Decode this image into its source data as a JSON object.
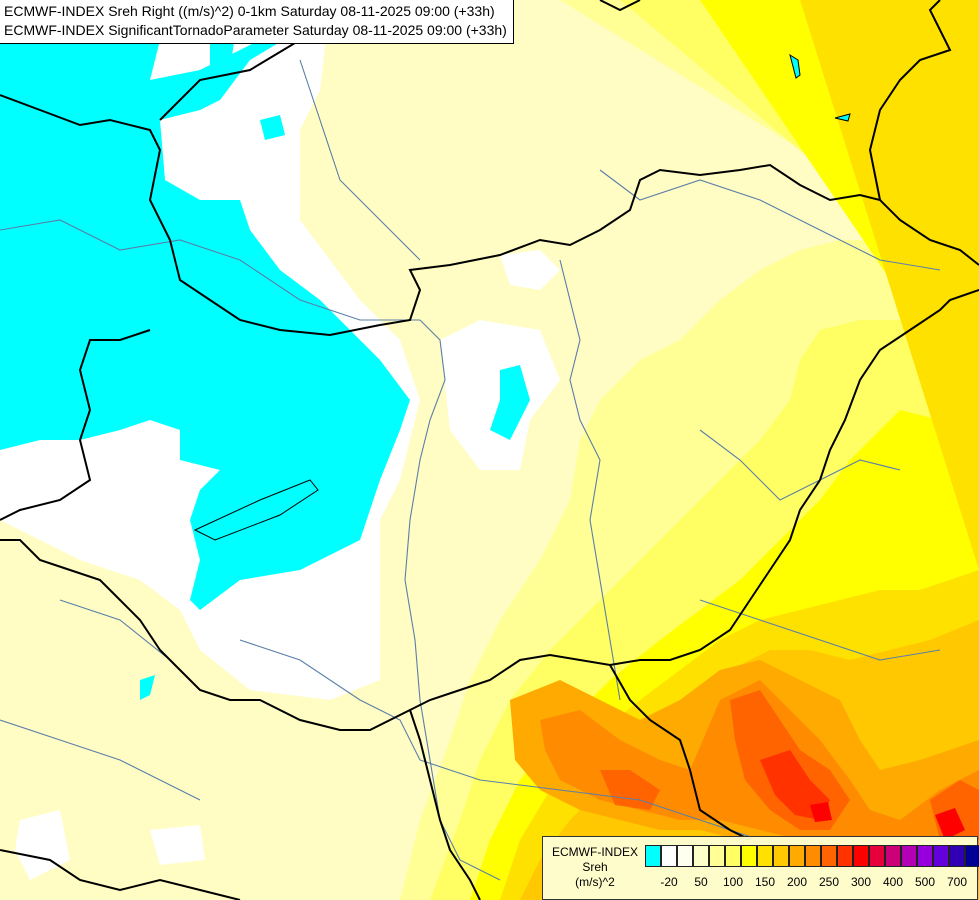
{
  "header": {
    "line1": "ECMWF-INDEX Sreh Right ((m/s)^2) 0-1km Saturday 08-11-2025 09:00 (+33h)",
    "line2": "ECMWF-INDEX SignificantTornadoParameter Saturday 08-11-2025 09:00 (+33h)"
  },
  "legend": {
    "title_line1": "ECMWF-INDEX",
    "title_line2": "Sreh",
    "title_line3": "(m/s)^2",
    "colors": [
      "#00ffff",
      "#ffffff",
      "#fffff0",
      "#ffffc8",
      "#ffff96",
      "#ffff64",
      "#ffff00",
      "#ffe100",
      "#ffc800",
      "#ffaa00",
      "#ff8c00",
      "#ff6400",
      "#ff3200",
      "#ff0000",
      "#e6003c",
      "#cc0078",
      "#b400b4",
      "#9600dc",
      "#6400dc",
      "#3200b4",
      "#000096"
    ],
    "ticks": [
      "-20",
      "50",
      "100",
      "150",
      "200",
      "250",
      "300",
      "400",
      "500",
      "700"
    ]
  },
  "map": {
    "region": "Central Europe (Hungary and surroundings)",
    "background_color": "#fffcc0",
    "cyan_color": "#00ffff"
  }
}
